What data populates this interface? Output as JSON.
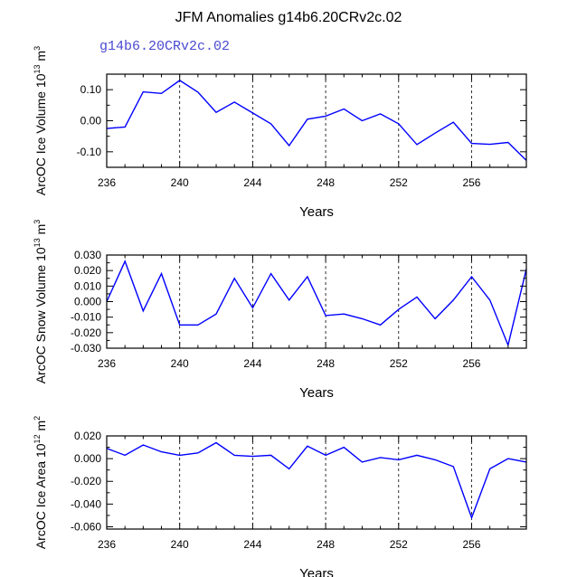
{
  "title": "JFM Anomalies g14b6.20CRv2c.02",
  "legend_label": "g14b6.20CRv2c.02",
  "line_color": "#0000ff",
  "chart_data": [
    {
      "type": "line",
      "ylabel": "ArcOC Ice Volume 10^13 m^3",
      "ylabel_parts": [
        "ArcOC Ice Volume 10",
        "13",
        " m",
        "3"
      ],
      "xlabel": "Years",
      "xlim": [
        236,
        259
      ],
      "ylim": [
        -0.15,
        0.15
      ],
      "xticks": [
        236,
        240,
        244,
        248,
        252,
        256
      ],
      "yticks": [
        0.1,
        0.0,
        -0.1
      ],
      "ytick_labels": [
        "0.10",
        "0.00",
        "-0.10"
      ],
      "grid": "dashed vertical at labeled years",
      "x": [
        236,
        237,
        238,
        239,
        240,
        241,
        242,
        243,
        244,
        245,
        246,
        247,
        248,
        249,
        250,
        251,
        252,
        253,
        254,
        255,
        256,
        257,
        258,
        259
      ],
      "series": [
        {
          "values": [
            -0.025,
            -0.02,
            0.093,
            0.088,
            0.13,
            0.092,
            0.027,
            0.06,
            0.025,
            -0.01,
            -0.08,
            0.005,
            0.015,
            0.038,
            0.0,
            0.022,
            -0.01,
            -0.077,
            -0.04,
            -0.005,
            -0.073,
            -0.076,
            -0.07,
            -0.128
          ]
        }
      ]
    },
    {
      "type": "line",
      "ylabel": "ArcOC Snow Volume 10^13 m^3",
      "ylabel_parts": [
        "ArcOC Snow Volume 10",
        "13",
        " m",
        "3"
      ],
      "xlabel": "Years",
      "xlim": [
        236,
        259
      ],
      "ylim": [
        -0.03,
        0.03
      ],
      "xticks": [
        236,
        240,
        244,
        248,
        252,
        256
      ],
      "yticks": [
        0.03,
        0.02,
        0.01,
        0.0,
        -0.01,
        -0.02,
        -0.03
      ],
      "ytick_labels": [
        "0.030",
        "0.020",
        "0.010",
        "0.000",
        "-0.010",
        "-0.020",
        "-0.030"
      ],
      "grid": "dashed vertical at labeled years",
      "x": [
        236,
        237,
        238,
        239,
        240,
        241,
        242,
        243,
        244,
        245,
        246,
        247,
        248,
        249,
        250,
        251,
        252,
        253,
        254,
        255,
        256,
        257,
        258,
        259
      ],
      "series": [
        {
          "values": [
            0.0,
            0.026,
            -0.006,
            0.018,
            -0.015,
            -0.015,
            -0.008,
            0.015,
            -0.004,
            0.018,
            0.001,
            0.016,
            -0.009,
            -0.008,
            -0.011,
            -0.015,
            -0.005,
            0.003,
            -0.011,
            0.001,
            0.016,
            0.001,
            -0.028,
            0.021
          ]
        }
      ]
    },
    {
      "type": "line",
      "ylabel": "ArcOC Ice Area 10^12 m^2",
      "ylabel_parts": [
        "ArcOC Ice Area 10",
        "12",
        " m",
        "2"
      ],
      "xlabel": "Years",
      "xlim": [
        236,
        259
      ],
      "ylim": [
        -0.062,
        0.02
      ],
      "xticks": [
        236,
        240,
        244,
        248,
        252,
        256
      ],
      "yticks": [
        0.02,
        0.0,
        -0.02,
        -0.04,
        -0.06
      ],
      "ytick_labels": [
        "0.020",
        "0.000",
        "-0.020",
        "-0.040",
        "-0.060"
      ],
      "grid": "dashed vertical at labeled years",
      "x": [
        236,
        237,
        238,
        239,
        240,
        241,
        242,
        243,
        244,
        245,
        246,
        247,
        248,
        249,
        250,
        251,
        252,
        253,
        254,
        255,
        256,
        257,
        258,
        259
      ],
      "series": [
        {
          "values": [
            0.009,
            0.003,
            0.012,
            0.006,
            0.003,
            0.005,
            0.014,
            0.003,
            0.002,
            0.003,
            -0.009,
            0.011,
            0.003,
            0.01,
            -0.003,
            0.001,
            -0.001,
            0.003,
            -0.001,
            -0.007,
            -0.052,
            -0.009,
            0.0,
            -0.003
          ]
        }
      ]
    }
  ]
}
